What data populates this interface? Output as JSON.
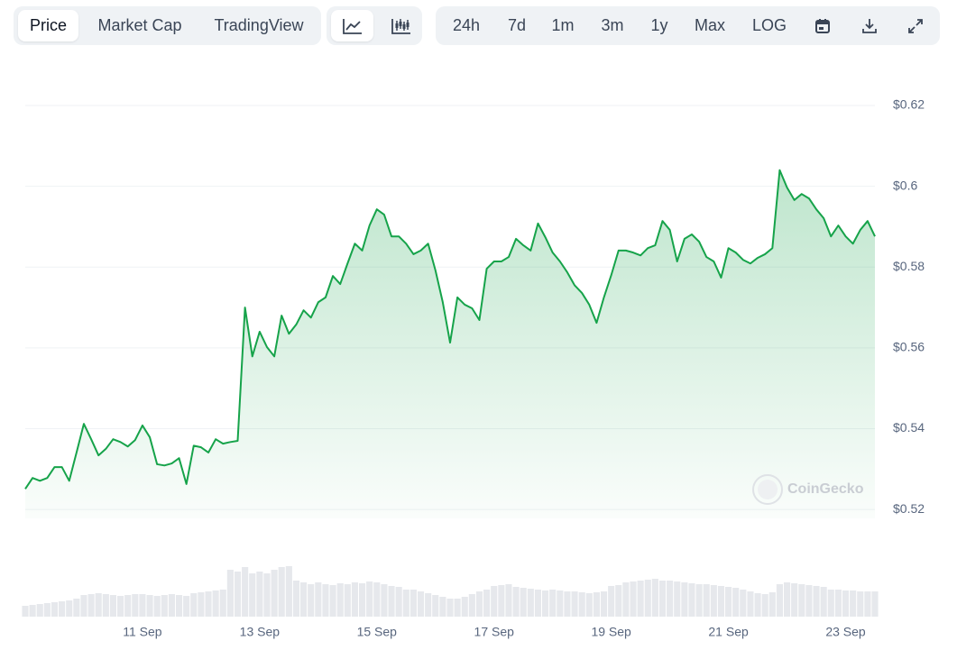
{
  "toolbar": {
    "tabs": [
      "Price",
      "Market Cap",
      "TradingView"
    ],
    "ranges": [
      "24h",
      "7d",
      "1m",
      "3m",
      "1y",
      "Max",
      "LOG"
    ]
  },
  "watermark": "CoinGecko",
  "chart_data": {
    "type": "line",
    "categories": [
      null,
      null,
      null,
      null,
      null,
      null,
      null,
      null,
      null,
      null,
      null,
      null,
      null,
      null,
      null,
      null,
      "11 Sep",
      null,
      null,
      null,
      null,
      null,
      null,
      null,
      null,
      null,
      null,
      null,
      null,
      null,
      null,
      null,
      "13 Sep",
      null,
      null,
      null,
      null,
      null,
      null,
      null,
      null,
      null,
      null,
      null,
      null,
      null,
      null,
      null,
      "15 Sep",
      null,
      null,
      null,
      null,
      null,
      null,
      null,
      null,
      null,
      null,
      null,
      null,
      null,
      null,
      null,
      "17 Sep",
      null,
      null,
      null,
      null,
      null,
      null,
      null,
      null,
      null,
      null,
      null,
      null,
      null,
      null,
      null,
      "19 Sep",
      null,
      null,
      null,
      null,
      null,
      null,
      null,
      null,
      null,
      null,
      null,
      null,
      null,
      null,
      null,
      "21 Sep",
      null,
      null,
      null,
      null,
      null,
      null,
      null,
      null,
      null,
      null,
      null,
      null,
      null,
      null,
      null,
      "23 Sep",
      null,
      null,
      null,
      null
    ],
    "values": [
      0.5251,
      0.5278,
      0.5271,
      0.5278,
      0.5305,
      0.5305,
      0.5271,
      0.5341,
      0.5412,
      0.5374,
      0.5334,
      0.535,
      0.5374,
      0.5367,
      0.5356,
      0.5372,
      0.5408,
      0.5379,
      0.5312,
      0.5309,
      0.5314,
      0.5327,
      0.5263,
      0.5358,
      0.5354,
      0.5341,
      0.5374,
      0.5363,
      0.5367,
      0.537,
      0.57,
      0.5579,
      0.564,
      0.5602,
      0.5579,
      0.568,
      0.5635,
      0.5658,
      0.5693,
      0.5675,
      0.5713,
      0.5725,
      0.5778,
      0.5758,
      0.5809,
      0.5858,
      0.5841,
      0.5903,
      0.5943,
      0.593,
      0.5876,
      0.5876,
      0.5858,
      0.5832,
      0.5841,
      0.5858,
      0.5792,
      0.5713,
      0.5613,
      0.5725,
      0.5707,
      0.5698,
      0.5669,
      0.5796,
      0.5814,
      0.5814,
      0.5825,
      0.587,
      0.5854,
      0.5841,
      0.5908,
      0.5874,
      0.5836,
      0.5814,
      0.5787,
      0.5755,
      0.5736,
      0.5707,
      0.5662,
      0.5725,
      0.578,
      0.5841,
      0.5841,
      0.5836,
      0.5829,
      0.5847,
      0.5854,
      0.5914,
      0.5892,
      0.5814,
      0.587,
      0.5881,
      0.5863,
      0.5825,
      0.5814,
      0.5774,
      0.5847,
      0.5836,
      0.5818,
      0.5809,
      0.5823,
      0.5832,
      0.5847,
      0.604,
      0.5997,
      0.5966,
      0.5981,
      0.597,
      0.5943,
      0.5921,
      0.5876,
      0.5903,
      0.5876,
      0.5858,
      0.5892,
      0.5914,
      0.5876
    ],
    "color": "#16a34a",
    "ylim": [
      0.5178,
      0.6238
    ],
    "yticks": [
      {
        "value": 0.52,
        "label": "$0.52"
      },
      {
        "value": 0.54,
        "label": "$0.54"
      },
      {
        "value": 0.56,
        "label": "$0.56"
      },
      {
        "value": 0.58,
        "label": "$0.58"
      },
      {
        "value": 0.6,
        "label": "$0.6"
      },
      {
        "value": 0.62,
        "label": "$0.62"
      }
    ],
    "grid": true,
    "volume": [
      12,
      13,
      14,
      15,
      16,
      17,
      18,
      20,
      24,
      25,
      26,
      25,
      24,
      23,
      24,
      25,
      25,
      24,
      23,
      24,
      25,
      24,
      23,
      26,
      27,
      28,
      29,
      30,
      52,
      50,
      55,
      48,
      50,
      48,
      52,
      55,
      56,
      40,
      38,
      36,
      38,
      36,
      35,
      37,
      36,
      38,
      37,
      39,
      38,
      36,
      34,
      33,
      30,
      30,
      28,
      26,
      24,
      22,
      20,
      20,
      22,
      25,
      28,
      30,
      34,
      35,
      36,
      33,
      32,
      31,
      30,
      29,
      30,
      29,
      28,
      28,
      27,
      26,
      27,
      28,
      34,
      35,
      38,
      39,
      40,
      41,
      42,
      40,
      40,
      39,
      38,
      37,
      36,
      36,
      35,
      34,
      33,
      32,
      30,
      28,
      26,
      25,
      27,
      36,
      38,
      37,
      36,
      35,
      34,
      33,
      30,
      30,
      29,
      29,
      28,
      28,
      28
    ],
    "volume_lim": [
      0,
      60
    ],
    "volume_color": "#e6e8ec"
  }
}
